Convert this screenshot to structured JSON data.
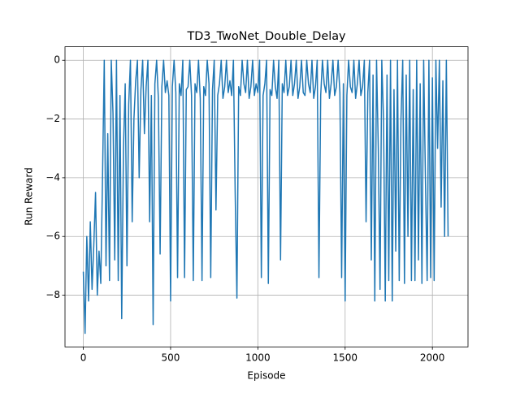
{
  "chart_data": {
    "type": "line",
    "title": "TD3_TwoNet_Double_Delay",
    "xlabel": "Episode",
    "ylabel": "Run Reward",
    "x": [
      0,
      10,
      20,
      30,
      40,
      50,
      60,
      70,
      80,
      90,
      100,
      110,
      120,
      130,
      140,
      150,
      160,
      170,
      180,
      190,
      200,
      210,
      220,
      230,
      240,
      250,
      260,
      270,
      280,
      290,
      300,
      310,
      320,
      330,
      340,
      350,
      360,
      370,
      380,
      390,
      400,
      410,
      420,
      430,
      440,
      450,
      460,
      470,
      480,
      490,
      500,
      510,
      520,
      530,
      540,
      550,
      560,
      570,
      580,
      590,
      600,
      610,
      620,
      630,
      640,
      650,
      660,
      670,
      680,
      690,
      700,
      710,
      720,
      730,
      740,
      750,
      760,
      770,
      780,
      790,
      800,
      810,
      820,
      830,
      840,
      850,
      860,
      870,
      880,
      890,
      900,
      910,
      920,
      930,
      940,
      950,
      960,
      970,
      980,
      990,
      1000,
      1010,
      1020,
      1030,
      1040,
      1050,
      1060,
      1070,
      1080,
      1090,
      1100,
      1110,
      1120,
      1130,
      1140,
      1150,
      1160,
      1170,
      1180,
      1190,
      1200,
      1210,
      1220,
      1230,
      1240,
      1250,
      1260,
      1270,
      1280,
      1290,
      1300,
      1310,
      1320,
      1330,
      1340,
      1350,
      1360,
      1370,
      1380,
      1390,
      1400,
      1410,
      1420,
      1430,
      1440,
      1450,
      1460,
      1470,
      1480,
      1490,
      1500,
      1510,
      1520,
      1530,
      1540,
      1550,
      1560,
      1570,
      1580,
      1590,
      1600,
      1610,
      1620,
      1630,
      1640,
      1650,
      1660,
      1670,
      1680,
      1690,
      1700,
      1710,
      1720,
      1730,
      1740,
      1750,
      1760,
      1770,
      1780,
      1790,
      1800,
      1810,
      1820,
      1830,
      1840,
      1850,
      1860,
      1870,
      1880,
      1890,
      1900,
      1910,
      1920,
      1930,
      1940,
      1950,
      1960,
      1970,
      1980,
      1990,
      2000,
      2010,
      2020,
      2030,
      2040,
      2050,
      2060,
      2070,
      2080,
      2090
    ],
    "series": [
      {
        "color": "#1f77b4",
        "values": [
          -7.2,
          -9.3,
          -6.0,
          -8.2,
          -5.5,
          -7.8,
          -6.3,
          -4.5,
          -8.0,
          -6.5,
          -7.6,
          -4.0,
          0,
          -7.0,
          -2.5,
          -7.5,
          0,
          -1.8,
          -6.8,
          0,
          -7.5,
          -1.2,
          -8.8,
          -3.0,
          -0.8,
          -7.0,
          -1.5,
          0,
          -5.5,
          -2.0,
          -0.7,
          0,
          -4.0,
          -1.0,
          0,
          -2.5,
          -0.9,
          0,
          -5.5,
          -1.2,
          -9.0,
          -0.8,
          0,
          -1.3,
          -6.6,
          -0.9,
          0,
          -1.1,
          -0.7,
          -1.2,
          -8.2,
          -0.9,
          0,
          -1.1,
          -7.4,
          -0.8,
          -1.2,
          0,
          -7.4,
          -1.0,
          -0.9,
          0,
          -1.2,
          -7.5,
          -0.8,
          -1.1,
          0,
          -1.3,
          -7.5,
          -0.9,
          -1.2,
          0,
          -0.8,
          -7.4,
          -1.0,
          0,
          -5.1,
          -1.2,
          -0.8,
          0,
          -1.3,
          -0.9,
          0,
          -1.1,
          -0.7,
          -1.2,
          0,
          -4.5,
          -8.1,
          -0.9,
          -1.2,
          0,
          -0.8,
          -1.1,
          0,
          -1.3,
          -0.9,
          0,
          -1.2,
          -0.8,
          -1.1,
          0,
          -7.4,
          -1.2,
          -0.8,
          0,
          -7.6,
          -1.0,
          -1.2,
          0,
          -0.9,
          -1.3,
          0,
          -6.8,
          -0.8,
          -1.1,
          0,
          -1.2,
          -0.9,
          0,
          -1.2,
          -0.8,
          0,
          -1.3,
          -0.9,
          0,
          -1.1,
          -1.2,
          0,
          -0.8,
          -1.1,
          0,
          -1.3,
          -0.9,
          0,
          -7.4,
          -1.2,
          0,
          -0.8,
          -1.1,
          0,
          -1.3,
          -0.8,
          0,
          -1.2,
          -0.9,
          0,
          -1.1,
          -7.4,
          -0.8,
          -8.2,
          -1.2,
          0,
          -0.9,
          -1.1,
          0,
          -1.3,
          -0.8,
          0,
          -1.2,
          -0.9,
          0,
          -5.5,
          -1.1,
          0,
          -6.8,
          -0.5,
          -8.2,
          0,
          -3.0,
          -7.8,
          0,
          -2.0,
          -8.2,
          -0.5,
          -7.5,
          0,
          -8.2,
          -1.0,
          -6.5,
          0,
          -7.5,
          -2.0,
          0,
          -7.6,
          -0.5,
          -6.0,
          0,
          -7.5,
          -1.0,
          -7.5,
          0,
          -6.8,
          -0.8,
          -7.6,
          0,
          -4.0,
          -7.5,
          0,
          -7.4,
          -0.6,
          -7.5,
          0,
          -3.0,
          0,
          -5.0,
          -0.7,
          -6.0,
          0,
          -6.0
        ]
      }
    ],
    "xlim": [
      -105,
      2204
    ],
    "ylim": [
      -9.76,
      0.46
    ],
    "xticks": [
      0,
      500,
      1000,
      1500,
      2000
    ],
    "yticks": [
      {
        "value": -8,
        "label": "−8"
      },
      {
        "value": -6,
        "label": "−6"
      },
      {
        "value": -4,
        "label": "−4"
      },
      {
        "value": -2,
        "label": "−2"
      },
      0
    ],
    "grid": true
  }
}
